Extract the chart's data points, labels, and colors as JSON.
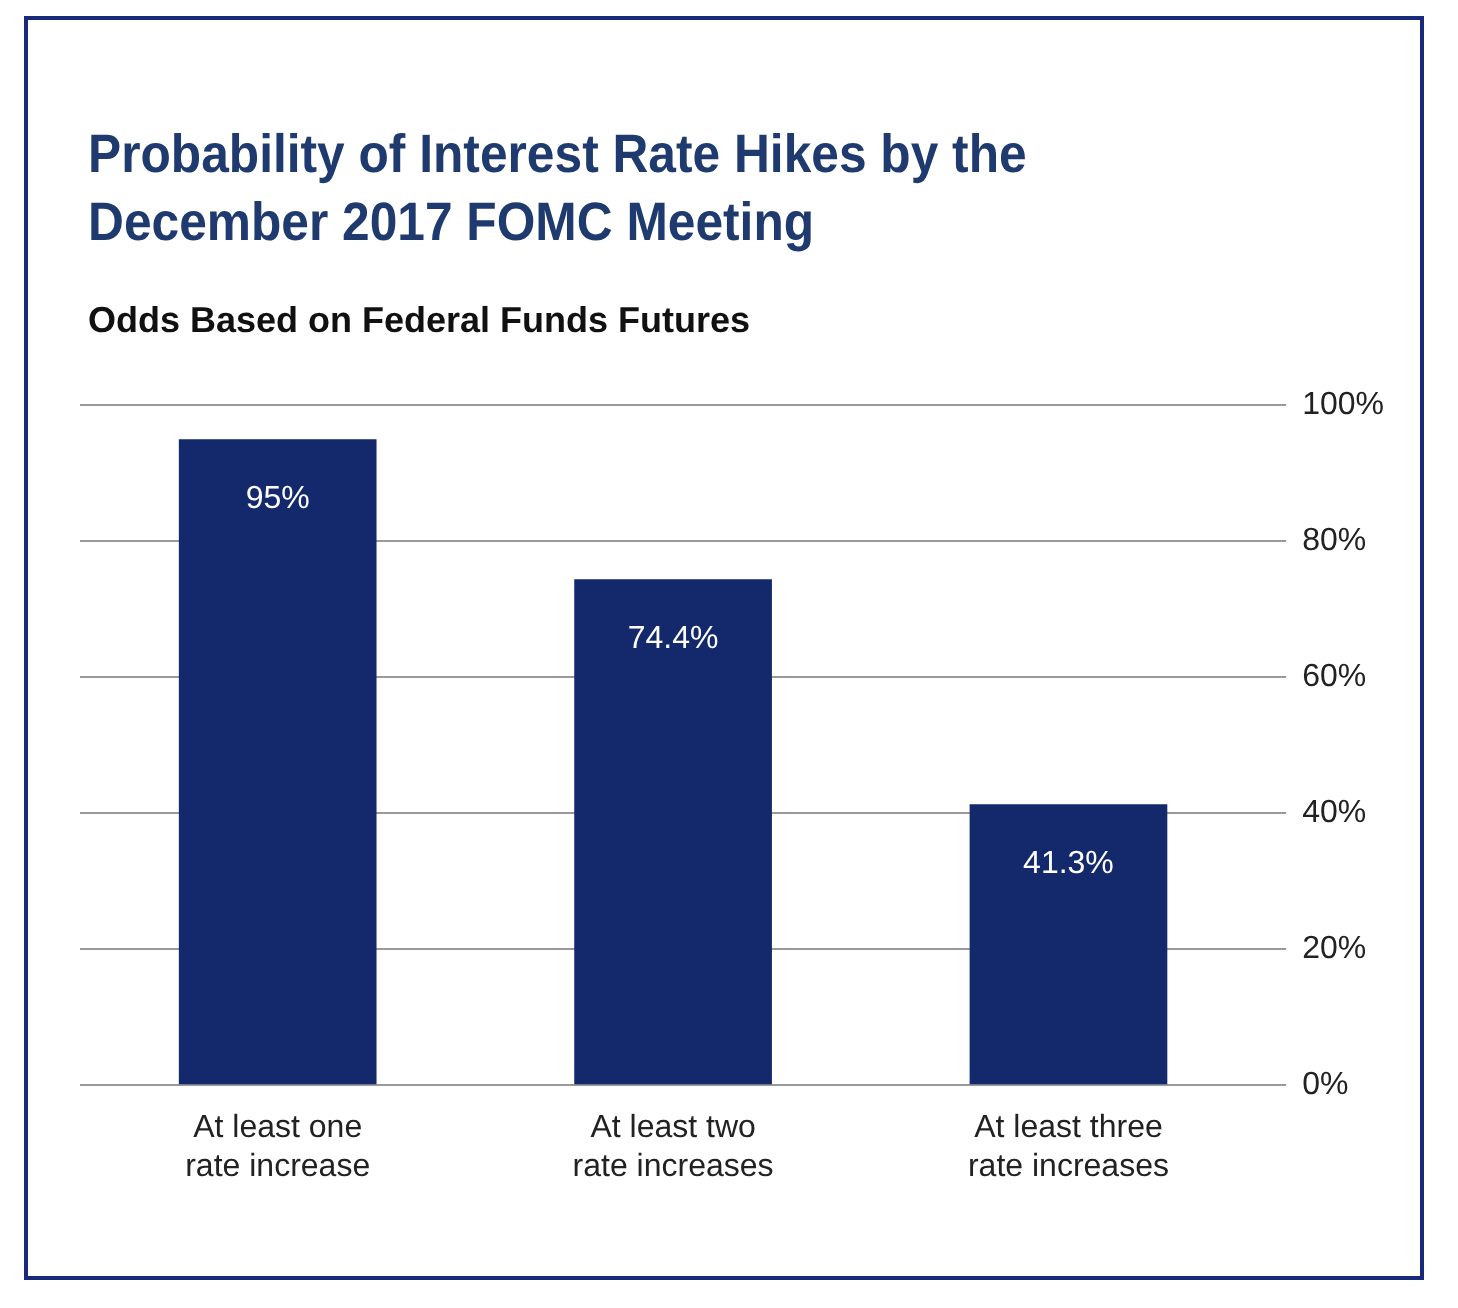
{
  "chart_data": {
    "type": "bar",
    "title": "Probability of Interest Rate Hikes by the December 2017 FOMC Meeting",
    "subtitle": "Odds Based on Federal Funds Futures",
    "categories": [
      "At least one rate increase",
      "At least two rate increases",
      "At least three rate increases"
    ],
    "values": [
      95,
      74.4,
      41.3
    ],
    "color": "#14296b",
    "value_labels": [
      "95%",
      "74.4%",
      "41.3%"
    ],
    "ylim": [
      0,
      100
    ],
    "yticks": [
      {
        "value": 0,
        "label": "0%"
      },
      {
        "value": 20,
        "label": "20%"
      },
      {
        "value": 40,
        "label": "40%"
      },
      {
        "value": 60,
        "label": "60%"
      },
      {
        "value": 80,
        "label": "80%"
      },
      {
        "value": 100,
        "label": "100%"
      }
    ],
    "grid": "y",
    "legend": false
  }
}
